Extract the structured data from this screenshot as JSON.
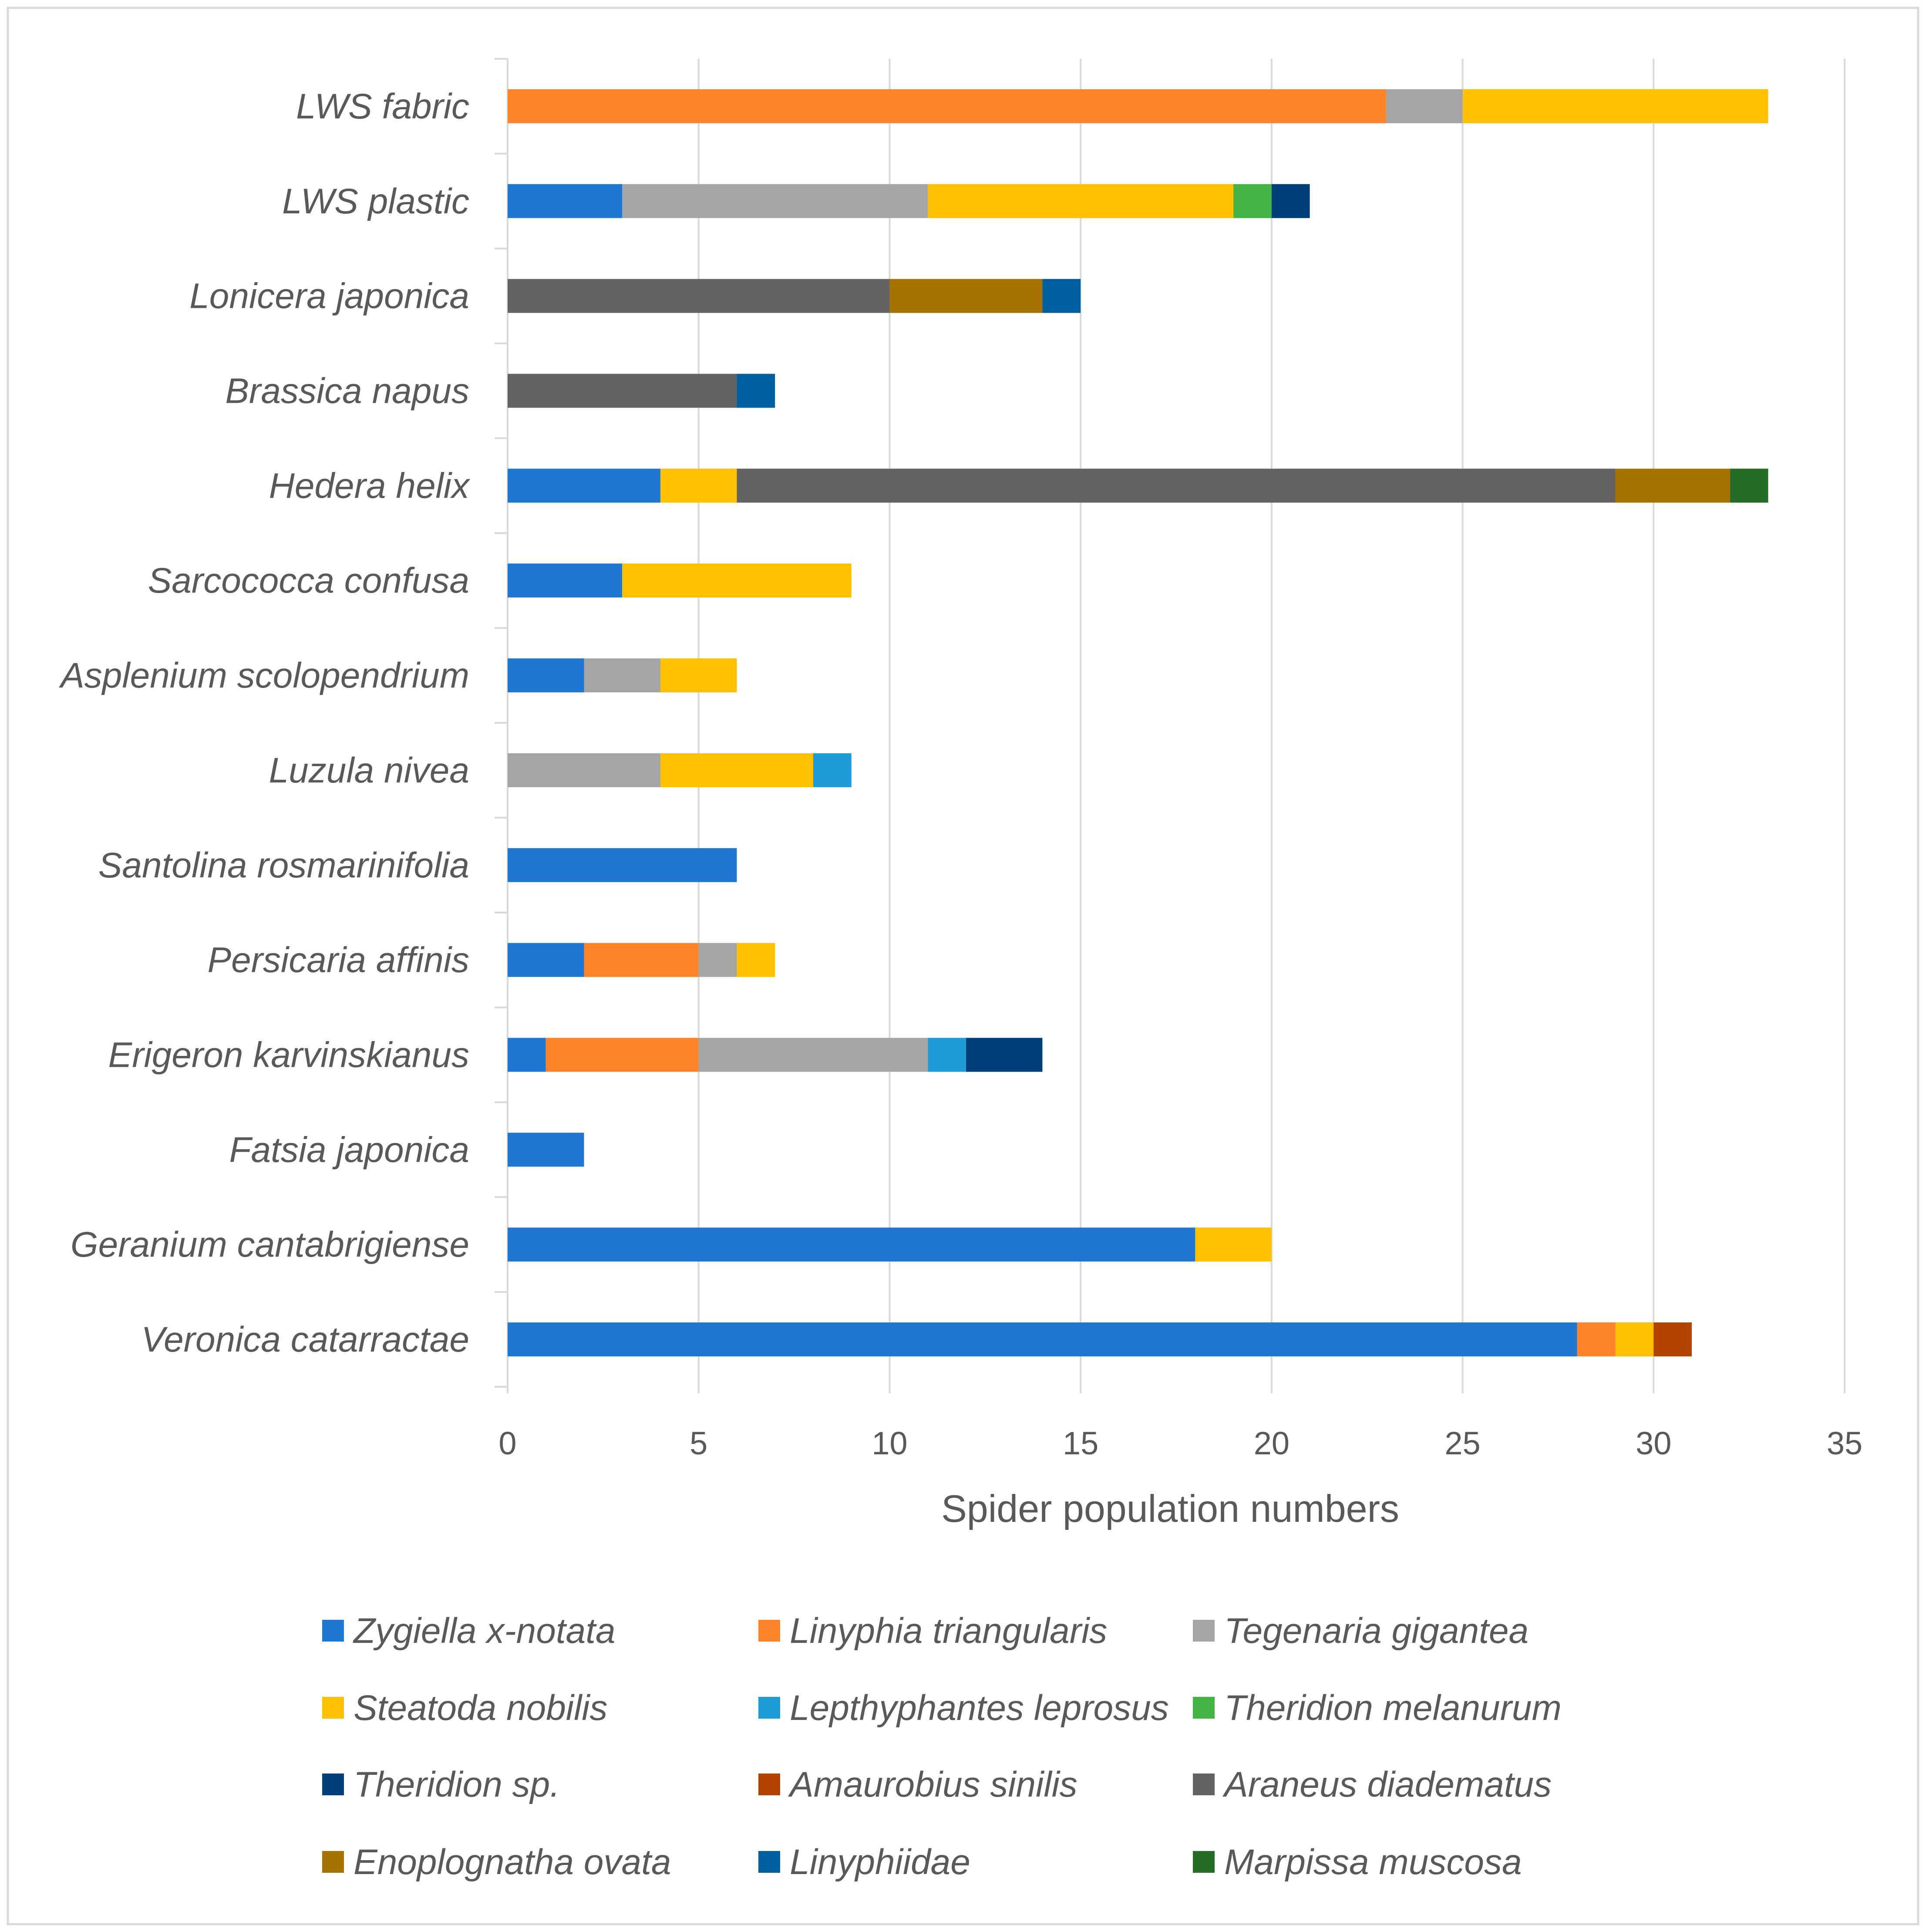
{
  "chart_data": {
    "type": "bar",
    "orientation": "horizontal",
    "stacked": true,
    "title": "",
    "xlabel": "Spider population numbers",
    "ylabel": "",
    "xlim": [
      0,
      35
    ],
    "xticks": [
      "0",
      "5",
      "10",
      "15",
      "20",
      "25",
      "30",
      "35"
    ],
    "grid": true,
    "legend_position": "bottom",
    "categories": [
      "LWS fabric",
      "LWS plastic",
      "Lonicera japonica",
      "Brassica napus",
      "Hedera helix",
      "Sarcococca confusa",
      "Asplenium scolopendrium",
      "Luzula nivea",
      "Santolina rosmarinifolia",
      "Persicaria affinis",
      "Erigeron karvinskianus",
      "Fatsia japonica",
      "Geranium cantabrigiense",
      "Veronica catarractae"
    ],
    "series": [
      {
        "name": "Zygiella x-notata",
        "color": "#1f77d2",
        "values": [
          0,
          3,
          0,
          0,
          4,
          3,
          2,
          0,
          6,
          2,
          1,
          2,
          18,
          28
        ]
      },
      {
        "name": "Linyphia triangularis",
        "color": "#ff832b",
        "values": [
          23,
          0,
          0,
          0,
          0,
          0,
          0,
          0,
          0,
          3,
          4,
          0,
          0,
          1
        ]
      },
      {
        "name": "Tegenaria gigantea",
        "color": "#a5a5a5",
        "values": [
          2,
          8,
          0,
          0,
          0,
          0,
          2,
          4,
          0,
          1,
          6,
          0,
          0,
          0
        ]
      },
      {
        "name": "Steatoda nobilis",
        "color": "#ffc000",
        "values": [
          8,
          8,
          0,
          0,
          2,
          6,
          2,
          4,
          0,
          1,
          0,
          0,
          2,
          1
        ]
      },
      {
        "name": "Lepthyphantes leprosus",
        "color": "#1f9bd7",
        "values": [
          0,
          0,
          0,
          0,
          0,
          0,
          0,
          1,
          0,
          0,
          1,
          0,
          0,
          0
        ]
      },
      {
        "name": "Theridion melanurum",
        "color": "#43b343",
        "values": [
          0,
          1,
          0,
          0,
          0,
          0,
          0,
          0,
          0,
          0,
          0,
          0,
          0,
          0
        ]
      },
      {
        "name": "Theridion sp.",
        "color": "#003f7a",
        "values": [
          0,
          1,
          0,
          0,
          0,
          0,
          0,
          0,
          0,
          0,
          2,
          0,
          0,
          0
        ]
      },
      {
        "name": "Amaurobius sinilis",
        "color": "#b34400",
        "values": [
          0,
          0,
          0,
          0,
          0,
          0,
          0,
          0,
          0,
          0,
          0,
          0,
          0,
          1
        ]
      },
      {
        "name": "Araneus diadematus",
        "color": "#636363",
        "values": [
          0,
          0,
          10,
          6,
          23,
          0,
          0,
          0,
          0,
          0,
          0,
          0,
          0,
          0
        ]
      },
      {
        "name": "Enoplognatha ovata",
        "color": "#a67300",
        "values": [
          0,
          0,
          4,
          0,
          3,
          0,
          0,
          0,
          0,
          0,
          0,
          0,
          0,
          0
        ]
      },
      {
        "name": "Linyphiidae",
        "color": "#005f9e",
        "values": [
          0,
          0,
          1,
          1,
          0,
          0,
          0,
          0,
          0,
          0,
          0,
          0,
          0,
          0
        ]
      },
      {
        "name": "Marpissa muscosa",
        "color": "#256d27",
        "values": [
          0,
          0,
          0,
          0,
          1,
          0,
          0,
          0,
          0,
          0,
          0,
          0,
          0,
          0
        ]
      }
    ]
  }
}
